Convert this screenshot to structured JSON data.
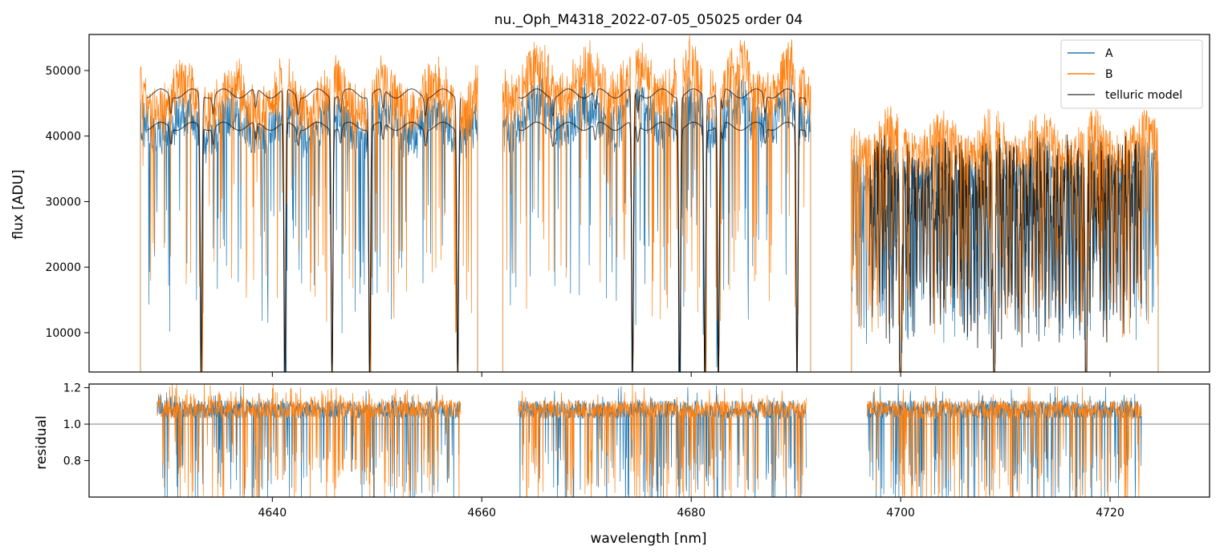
{
  "chart_data": [
    {
      "type": "line",
      "panel": "top",
      "title": "nu._Oph_M4318_2022-07-05_05025  order 04",
      "xlabel": "",
      "ylabel": "flux [ADU]",
      "xlim": [
        4622.5,
        4729.5
      ],
      "ylim": [
        4000,
        55500
      ],
      "yticks": [
        10000,
        20000,
        30000,
        40000,
        50000
      ],
      "ytick_labels": [
        "10000",
        "20000",
        "30000",
        "40000",
        "50000"
      ],
      "xticks": [
        4640,
        4660,
        4680,
        4700,
        4720
      ],
      "legend_position": "top-right",
      "series": [
        {
          "name": "A",
          "color": "#1f77b4",
          "continuum_segments": [
            [
              4627.4,
              4659.6,
              45000
            ],
            [
              4662.0,
              4691.4,
              46500
            ],
            [
              4695.3,
              4724.6,
              38000
            ]
          ]
        },
        {
          "name": "B",
          "color": "#ff7f0e",
          "continuum_segments": [
            [
              4627.4,
              4659.6,
              49500
            ],
            [
              4662.0,
              4691.4,
              52000
            ],
            [
              4695.3,
              4724.6,
              42000
            ]
          ]
        },
        {
          "name": "telluric model",
          "color": "#000000",
          "alpha": 0.65,
          "upper_level": 46500,
          "lower_level": 41500,
          "deep_lines": [
            4633.2,
            4641.2,
            4645.7,
            4649.3,
            4657.7,
            4674.4,
            4678.9,
            4681.3,
            4682.6,
            4690.1,
            4700.0,
            4708.9,
            4717.7
          ]
        }
      ]
    },
    {
      "type": "line",
      "panel": "bottom",
      "xlabel": "wavelength [nm]",
      "ylabel": "residual",
      "xlim": [
        4622.5,
        4729.5
      ],
      "ylim": [
        0.6,
        1.22
      ],
      "yticks": [
        0.8,
        1.0,
        1.2
      ],
      "ytick_labels": [
        "0.8",
        "1.0",
        "1.2"
      ],
      "xticks": [
        4640,
        4660,
        4680,
        4700,
        4720
      ],
      "xtick_labels": [
        "4640",
        "4660",
        "4680",
        "4700",
        "4720"
      ],
      "reference_line": 1.0,
      "segments": [
        [
          4629.0,
          4658.0
        ],
        [
          4663.5,
          4691.0
        ],
        [
          4696.8,
          4723.0
        ]
      ],
      "series": [
        {
          "name": "A",
          "color": "#1f77b4"
        },
        {
          "name": "B",
          "color": "#ff7f0e"
        }
      ]
    }
  ]
}
